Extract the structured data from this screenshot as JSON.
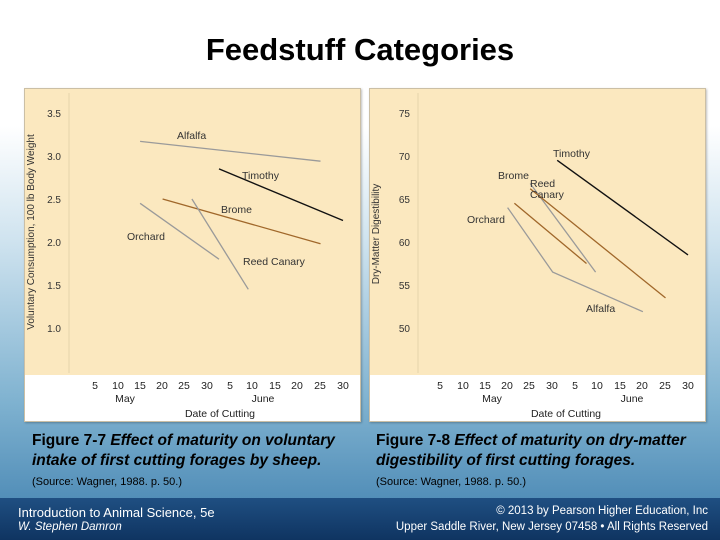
{
  "slide": {
    "title": "Feedstuff Categories"
  },
  "figure1": {
    "fig_label": "Figure 7-7",
    "description": "Effect of maturity on voluntary intake of first cutting forages by sheep.",
    "source": "(Source: Wagner, 1988. p. 50.)"
  },
  "figure2": {
    "fig_label": "Figure 7-8",
    "description": "Effect of maturity on dry-matter digestibility of first cutting forages.",
    "source": "(Source: Wagner, 1988. p. 50.)"
  },
  "footer": {
    "course": "Introduction to Animal Science, 5e",
    "author": "W. Stephen Damron",
    "copyright": "© 2013 by Pearson Higher Education, Inc",
    "address": "Upper Saddle River, New Jersey 07458 • All Rights Reserved"
  },
  "colors": {
    "panel_bg": "#fbe8bf",
    "gray_series": "#9a9a9a",
    "brown_series": "#a0672a",
    "black_series": "#111111"
  },
  "chart_data": [
    {
      "type": "line",
      "title": "",
      "xlabel": "Date of Cutting",
      "ylabel": "Voluntary Consumption, 100 lb Body Weight",
      "x_tick_labels": [
        "5",
        "10",
        "15",
        "20",
        "25",
        "30",
        "5",
        "10",
        "15",
        "20",
        "25",
        "30"
      ],
      "month_labels": [
        "May",
        "June"
      ],
      "x_range": [
        1,
        12
      ],
      "y_ticks": [
        "3.5",
        "3.0",
        "2.5",
        "2.0",
        "1.5",
        "1.0"
      ],
      "ylim": [
        0.5,
        3.6
      ],
      "series": [
        {
          "name": "Alfalfa",
          "color": "gray",
          "x": [
            3,
            11
          ],
          "y": [
            3.17,
            2.94
          ]
        },
        {
          "name": "Timothy",
          "color": "black",
          "x": [
            6.5,
            12
          ],
          "y": [
            2.85,
            2.25
          ]
        },
        {
          "name": "Brome",
          "color": "brown",
          "x": [
            4,
            11
          ],
          "y": [
            2.5,
            1.98
          ]
        },
        {
          "name": "Orchard",
          "color": "gray",
          "x": [
            3,
            6.5
          ],
          "y": [
            2.45,
            1.8
          ]
        },
        {
          "name": "Reed Canary",
          "color": "gray",
          "x": [
            5.3,
            7.8
          ],
          "y": [
            2.5,
            1.45
          ]
        }
      ]
    },
    {
      "type": "line",
      "title": "",
      "xlabel": "Date of Cutting",
      "ylabel": "Dry-Matter Digestibility",
      "x_tick_labels": [
        "5",
        "10",
        "15",
        "20",
        "25",
        "30",
        "5",
        "10",
        "15",
        "20",
        "25",
        "30"
      ],
      "month_labels": [
        "May",
        "June"
      ],
      "x_range": [
        1,
        12
      ],
      "y_ticks": [
        "75",
        "70",
        "65",
        "60",
        "55",
        "50"
      ],
      "ylim": [
        46,
        76
      ],
      "series": [
        {
          "name": "Timothy",
          "color": "black",
          "x": [
            6.2,
            12
          ],
          "y": [
            69.5,
            58.5
          ]
        },
        {
          "name": "Brome",
          "color": "brown",
          "x": [
            4.3,
            7.5
          ],
          "y": [
            64.5,
            57.5
          ]
        },
        {
          "name": "Reed Canary",
          "color": "gray",
          "x": [
            5,
            7.9
          ],
          "y": [
            66.8,
            56.5
          ]
        },
        {
          "name": "Reed Canary (brown)",
          "color": "brown",
          "x": [
            5,
            11
          ],
          "y": [
            66.2,
            53.5
          ]
        },
        {
          "name": "Alfalfa",
          "color": "gray",
          "x": [
            4,
            6,
            10
          ],
          "y": [
            64,
            56.5,
            51.9
          ]
        }
      ],
      "labels": [
        {
          "text": "Timothy"
        },
        {
          "text": "Brome"
        },
        {
          "text": "Reed"
        },
        {
          "text": "Canary"
        },
        {
          "text": "Orchard"
        },
        {
          "text": "Alfalfa"
        }
      ]
    }
  ]
}
